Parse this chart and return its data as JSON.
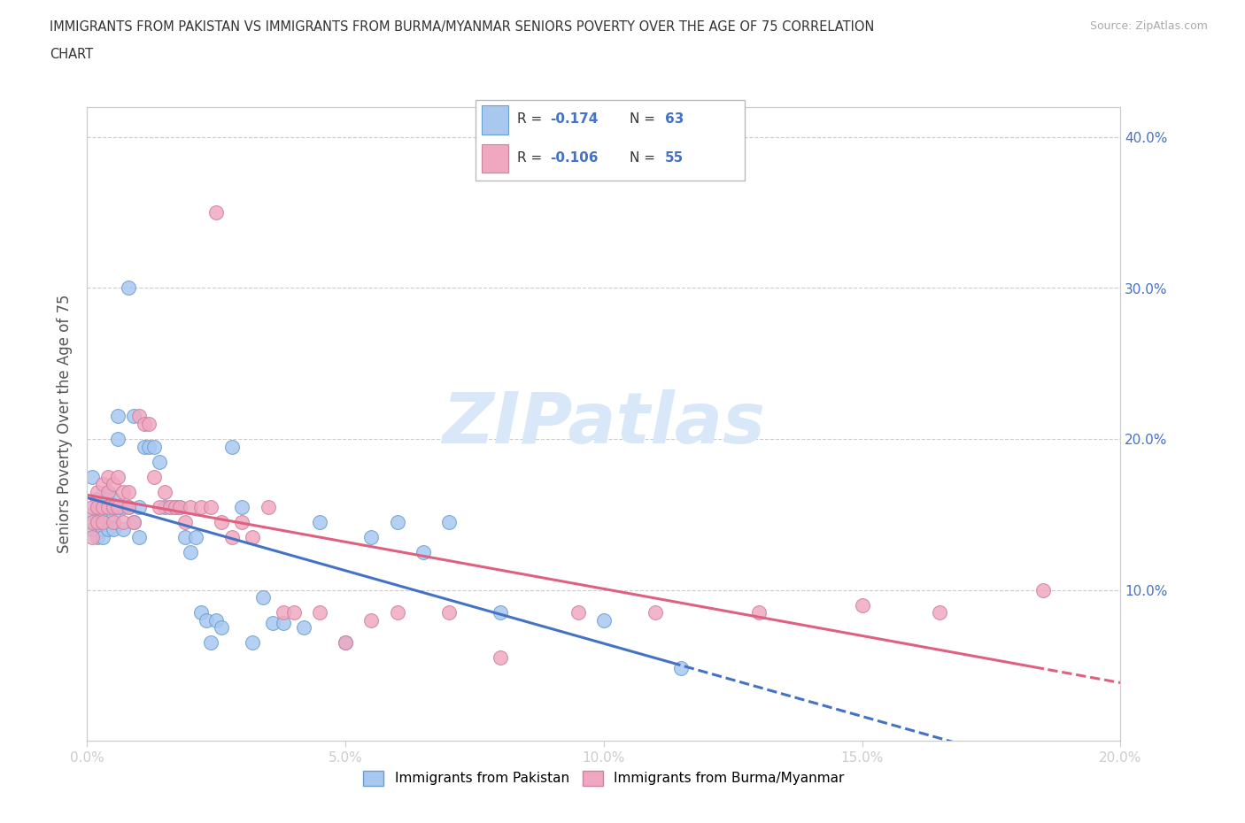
{
  "title_line1": "IMMIGRANTS FROM PAKISTAN VS IMMIGRANTS FROM BURMA/MYANMAR SENIORS POVERTY OVER THE AGE OF 75 CORRELATION",
  "title_line2": "CHART",
  "source": "Source: ZipAtlas.com",
  "ylabel": "Seniors Poverty Over the Age of 75",
  "xlim": [
    0.0,
    0.2
  ],
  "ylim": [
    0.0,
    0.42
  ],
  "xticks": [
    0.0,
    0.05,
    0.1,
    0.15,
    0.2
  ],
  "yticks": [
    0.1,
    0.2,
    0.3,
    0.4
  ],
  "xticklabels": [
    "0.0%",
    "5.0%",
    "10.0%",
    "15.0%",
    "20.0%"
  ],
  "yticklabels": [
    "10.0%",
    "20.0%",
    "30.0%",
    "40.0%"
  ],
  "pakistan_color": "#a8c8f0",
  "burma_color": "#f0a8c0",
  "pakistan_edge": "#6aa0d0",
  "burma_edge": "#d080a0",
  "regression_pakistan_color": "#4472c4",
  "regression_burma_color": "#e06080",
  "R_pakistan": -0.174,
  "N_pakistan": 63,
  "R_burma": -0.106,
  "N_burma": 55,
  "pakistan_x": [
    0.001,
    0.001,
    0.001,
    0.002,
    0.002,
    0.002,
    0.002,
    0.003,
    0.003,
    0.003,
    0.003,
    0.004,
    0.004,
    0.004,
    0.004,
    0.004,
    0.005,
    0.005,
    0.005,
    0.005,
    0.006,
    0.006,
    0.006,
    0.007,
    0.007,
    0.008,
    0.008,
    0.009,
    0.009,
    0.01,
    0.01,
    0.011,
    0.012,
    0.013,
    0.014,
    0.015,
    0.016,
    0.017,
    0.018,
    0.019,
    0.02,
    0.021,
    0.022,
    0.023,
    0.024,
    0.025,
    0.026,
    0.028,
    0.03,
    0.032,
    0.034,
    0.036,
    0.038,
    0.042,
    0.045,
    0.05,
    0.055,
    0.06,
    0.065,
    0.07,
    0.08,
    0.1,
    0.115
  ],
  "pakistan_y": [
    0.175,
    0.15,
    0.14,
    0.16,
    0.155,
    0.145,
    0.135,
    0.155,
    0.15,
    0.14,
    0.135,
    0.165,
    0.16,
    0.155,
    0.145,
    0.14,
    0.16,
    0.155,
    0.15,
    0.14,
    0.215,
    0.2,
    0.155,
    0.155,
    0.14,
    0.3,
    0.155,
    0.215,
    0.145,
    0.155,
    0.135,
    0.195,
    0.195,
    0.195,
    0.185,
    0.155,
    0.155,
    0.155,
    0.155,
    0.135,
    0.125,
    0.135,
    0.085,
    0.08,
    0.065,
    0.08,
    0.075,
    0.195,
    0.155,
    0.065,
    0.095,
    0.078,
    0.078,
    0.075,
    0.145,
    0.065,
    0.135,
    0.145,
    0.125,
    0.145,
    0.085,
    0.08,
    0.048
  ],
  "burma_x": [
    0.001,
    0.001,
    0.001,
    0.002,
    0.002,
    0.002,
    0.003,
    0.003,
    0.003,
    0.004,
    0.004,
    0.004,
    0.005,
    0.005,
    0.005,
    0.006,
    0.006,
    0.007,
    0.007,
    0.008,
    0.008,
    0.009,
    0.01,
    0.011,
    0.012,
    0.013,
    0.014,
    0.015,
    0.016,
    0.017,
    0.018,
    0.019,
    0.02,
    0.022,
    0.024,
    0.025,
    0.026,
    0.028,
    0.03,
    0.032,
    0.035,
    0.038,
    0.04,
    0.045,
    0.05,
    0.055,
    0.06,
    0.07,
    0.08,
    0.095,
    0.11,
    0.13,
    0.15,
    0.165,
    0.185
  ],
  "burma_y": [
    0.155,
    0.145,
    0.135,
    0.165,
    0.155,
    0.145,
    0.17,
    0.155,
    0.145,
    0.175,
    0.165,
    0.155,
    0.17,
    0.155,
    0.145,
    0.175,
    0.155,
    0.165,
    0.145,
    0.165,
    0.155,
    0.145,
    0.215,
    0.21,
    0.21,
    0.175,
    0.155,
    0.165,
    0.155,
    0.155,
    0.155,
    0.145,
    0.155,
    0.155,
    0.155,
    0.35,
    0.145,
    0.135,
    0.145,
    0.135,
    0.155,
    0.085,
    0.085,
    0.085,
    0.065,
    0.08,
    0.085,
    0.085,
    0.055,
    0.085,
    0.085,
    0.085,
    0.09,
    0.085,
    0.1
  ],
  "watermark_text": "ZIPatlas",
  "watermark_color": "#d8e8f8",
  "tick_color": "#4472c4",
  "grid_color": "#cccccc",
  "spine_color": "#cccccc"
}
